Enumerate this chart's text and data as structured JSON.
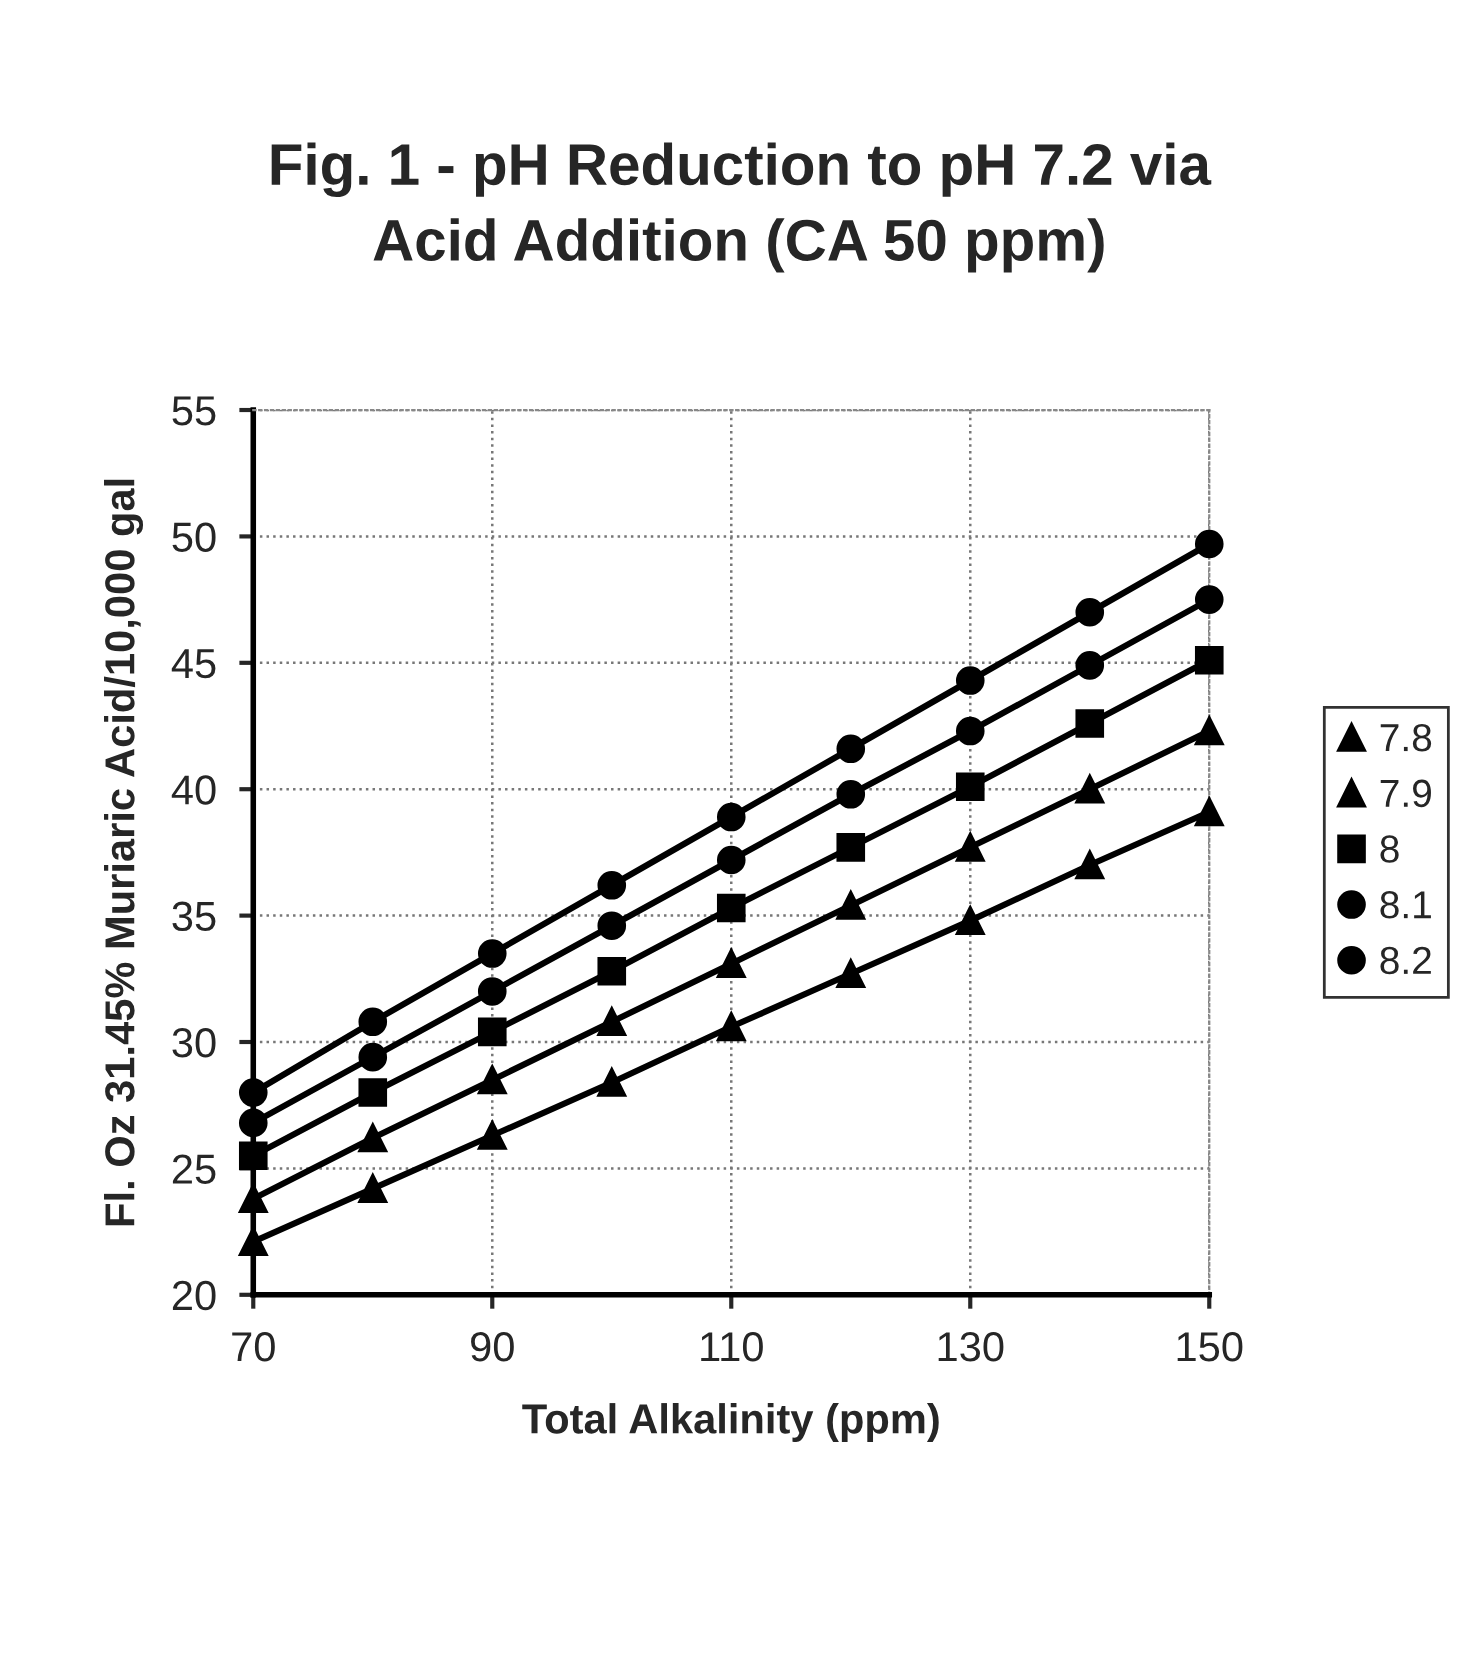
{
  "chart_data": {
    "type": "line",
    "title": "Fig. 1 - pH Reduction to pH 7.2 via\nAcid Addition (CA 50 ppm)",
    "xlabel": "Total Alkalinity (ppm)",
    "ylabel": "Fl. Oz 31.45% Muriaric Acid/10,000 gal",
    "x": [
      70,
      80,
      90,
      100,
      110,
      120,
      130,
      140,
      150
    ],
    "xlim": [
      70,
      150
    ],
    "xticks": [
      70,
      90,
      110,
      130,
      150
    ],
    "ylim": [
      20,
      55
    ],
    "yticks": [
      20,
      25,
      30,
      35,
      40,
      45,
      50,
      55
    ],
    "grid": true,
    "legend": "right",
    "line_style": "solid",
    "series": [
      {
        "name": "7.8",
        "color": "#000000",
        "marker": "triangle",
        "values": [
          22.1,
          24.2,
          26.3,
          28.4,
          30.6,
          32.7,
          34.8,
          37.0,
          39.1
        ]
      },
      {
        "name": "7.9",
        "color": "#000000",
        "marker": "triangle",
        "values": [
          23.8,
          26.2,
          28.5,
          30.8,
          33.1,
          35.4,
          37.7,
          40.0,
          42.3
        ]
      },
      {
        "name": "8",
        "color": "#000000",
        "marker": "square",
        "values": [
          25.5,
          28.0,
          30.4,
          32.8,
          35.3,
          37.7,
          40.1,
          42.6,
          45.1
        ]
      },
      {
        "name": "8.1",
        "color": "#000000",
        "marker": "circle",
        "values": [
          26.8,
          29.4,
          32.0,
          34.6,
          37.2,
          39.8,
          42.3,
          44.9,
          47.5
        ]
      },
      {
        "name": "8.2",
        "color": "#000000",
        "marker": "circle",
        "values": [
          28.0,
          30.8,
          33.5,
          36.2,
          38.9,
          41.6,
          44.3,
          47.0,
          49.7
        ]
      }
    ]
  }
}
